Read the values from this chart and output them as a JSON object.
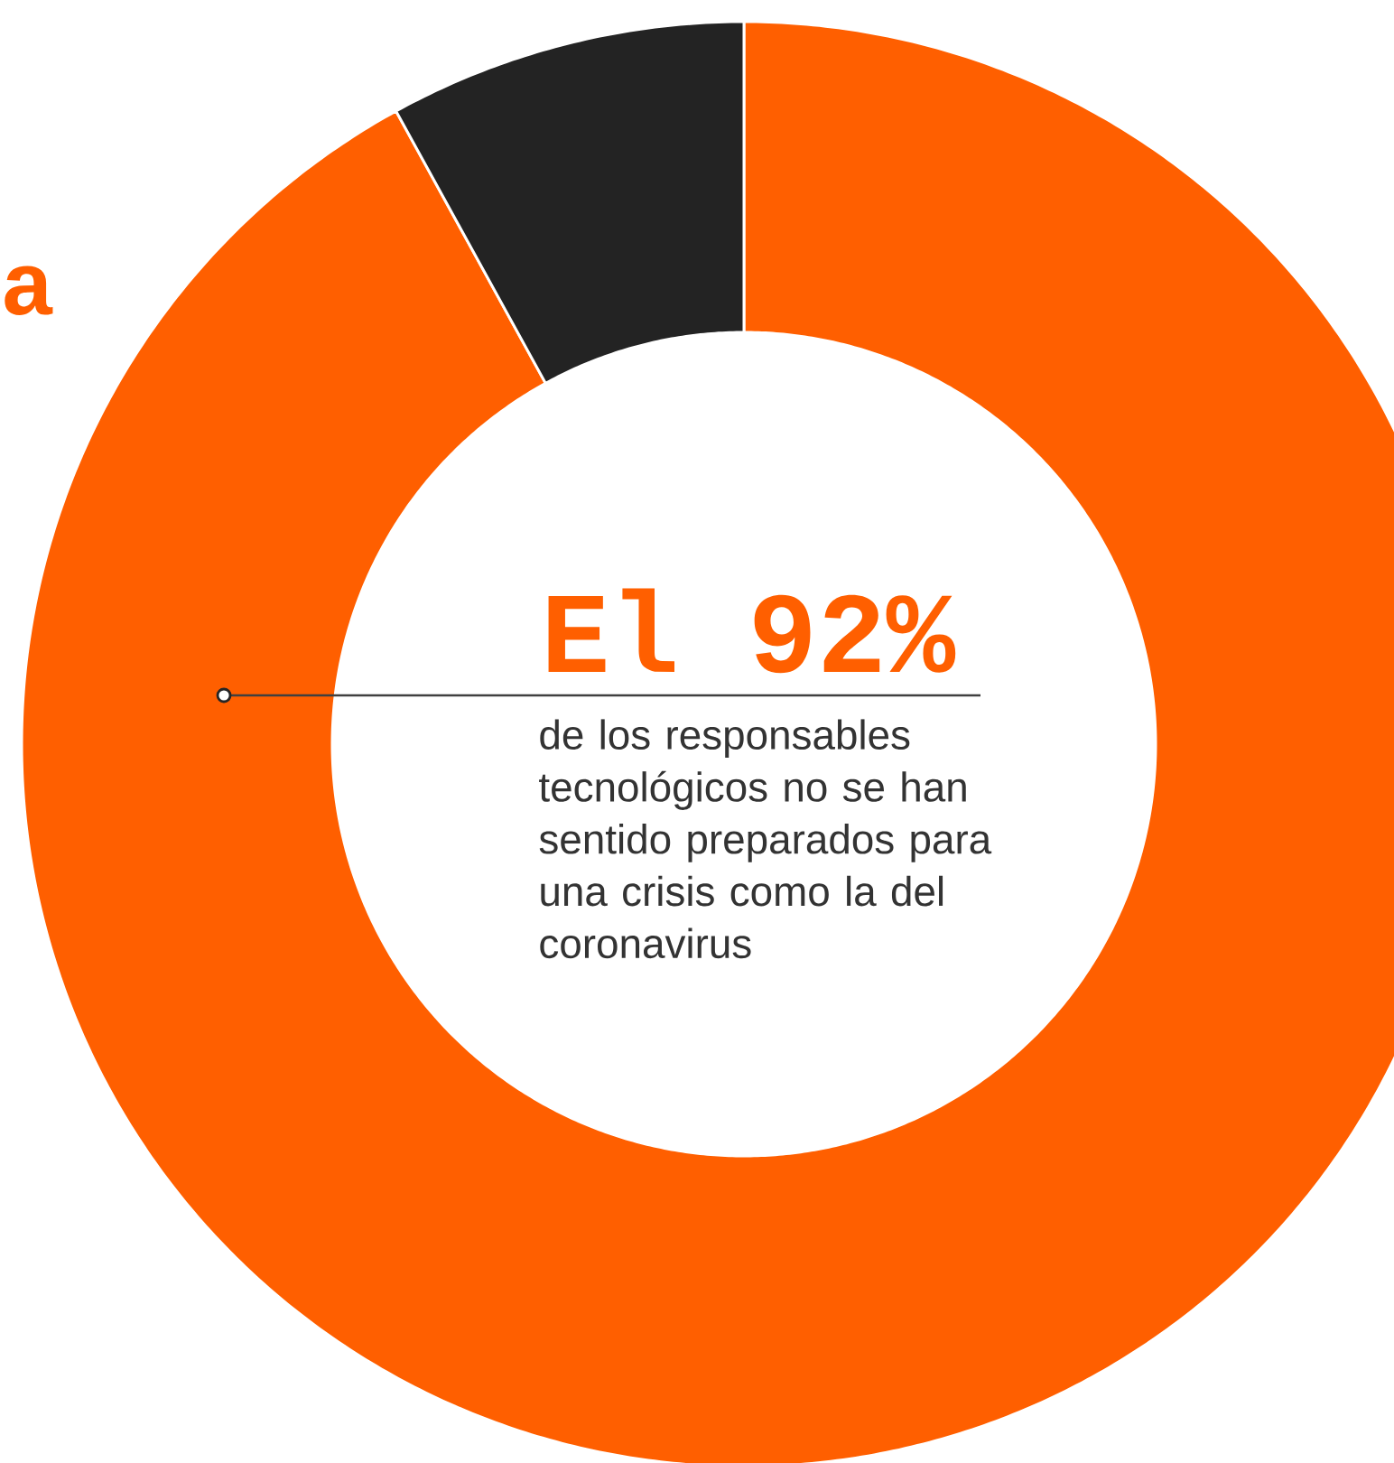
{
  "chart_data": {
    "type": "donut",
    "categories": [
      null,
      null
    ],
    "values": [
      92,
      8
    ],
    "colors": [
      "#ff5f00",
      "#232323"
    ],
    "annotations": [
      "El 92%",
      "de los responsables tecnológicos no se han sentido preparados para una crisis como la del coronavirus",
      "a"
    ]
  }
}
